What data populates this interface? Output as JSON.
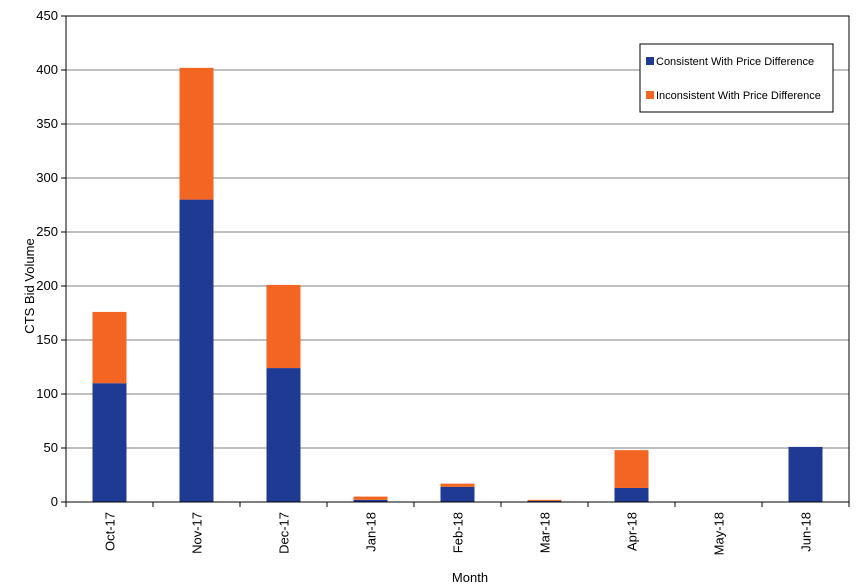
{
  "chart_data": {
    "type": "bar",
    "stacked": true,
    "categories": [
      "Oct-17",
      "Nov-17",
      "Dec-17",
      "Jan-18",
      "Feb-18",
      "Mar-18",
      "Apr-18",
      "May-18",
      "Jun-18"
    ],
    "series": [
      {
        "name": "Consistent With Price Difference",
        "color": "#1f3a93",
        "values": [
          110,
          280,
          124,
          2,
          14,
          1,
          13,
          0,
          51
        ]
      },
      {
        "name": "Inconsistent With Price Difference",
        "color": "#f26522",
        "values": [
          66,
          122,
          77,
          3,
          3,
          1,
          35,
          0,
          0
        ]
      }
    ],
    "title": "",
    "xlabel": "Month",
    "ylabel": "CTS Bid Volume",
    "ylim": [
      0,
      450
    ],
    "yticks": [
      0,
      50,
      100,
      150,
      200,
      250,
      300,
      350,
      400,
      450
    ],
    "grid": true,
    "legend_position": "top-right"
  }
}
